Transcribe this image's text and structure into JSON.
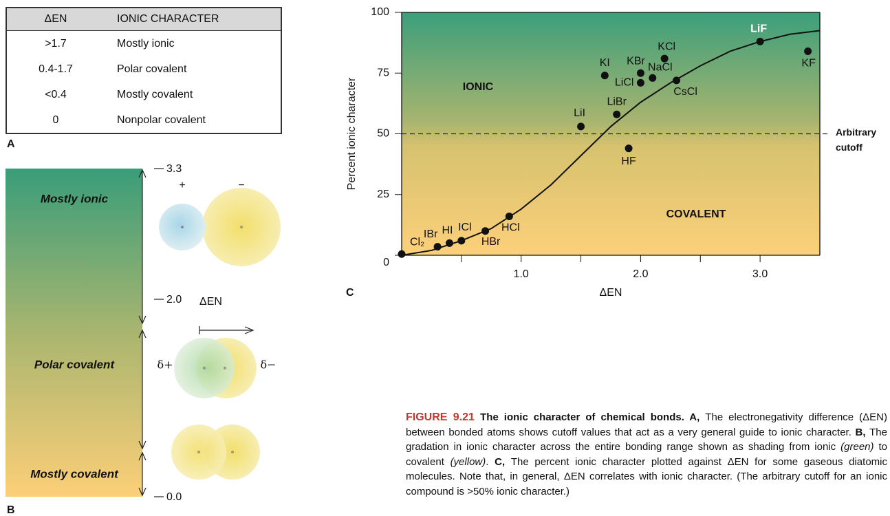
{
  "table": {
    "label": "A",
    "header": [
      "ΔEN",
      "IONIC CHARACTER"
    ],
    "rows": [
      [
        ">1.7",
        "Mostly ionic"
      ],
      [
        "0.4-1.7",
        "Polar covalent"
      ],
      [
        "<0.4",
        "Mostly covalent"
      ],
      [
        "0",
        "Nonpolar covalent"
      ]
    ]
  },
  "panel_b": {
    "label": "B",
    "regions": [
      "Mostly ionic",
      "Polar covalent",
      "Mostly covalent"
    ],
    "scale": [
      "3.3",
      "2.0",
      "0.0"
    ],
    "axis_label": "ΔEN",
    "ion_charges": [
      "+",
      "−"
    ],
    "partial_charges": [
      "δ+",
      "δ−"
    ]
  },
  "chart_data": {
    "type": "scatter",
    "panel_label": "C",
    "x_label": "ΔEN",
    "y_label": "Percent ionic character",
    "xlim": [
      0,
      3.5
    ],
    "ylim": [
      0,
      100
    ],
    "xticks": [
      {
        "value": 1,
        "label": "1.0"
      },
      {
        "value": 2,
        "label": "2.0"
      },
      {
        "value": 3,
        "label": "3.0"
      }
    ],
    "xminorticks": [
      0.5,
      1.5,
      2.5
    ],
    "yticks": [
      0,
      25,
      50,
      75,
      100
    ],
    "color": "#111111",
    "labels": [
      "Cl₂",
      "IBr",
      "HI",
      "ICl",
      "HBr",
      "HCl",
      "LiI",
      "KI",
      "LiBr",
      "HF",
      "KBr",
      "LiCl",
      "NaCl",
      "KCl",
      "CsCl",
      "LiF",
      "KF"
    ],
    "x": [
      0,
      0.3,
      0.4,
      0.5,
      0.7,
      0.9,
      1.5,
      1.7,
      1.8,
      1.9,
      2.0,
      2.0,
      2.1,
      2.2,
      2.3,
      3.0,
      3.4
    ],
    "values": [
      0.5,
      3.5,
      5,
      6,
      10,
      16,
      53,
      74,
      58,
      44,
      75,
      71,
      73,
      81,
      72,
      88,
      84
    ],
    "highlight_index": 15,
    "curve": {
      "x": [
        0,
        0.25,
        0.5,
        0.75,
        1.0,
        1.25,
        1.5,
        1.75,
        2.0,
        2.25,
        2.5,
        2.75,
        3.0,
        3.25,
        3.5
      ],
      "y": [
        0,
        2,
        6,
        11,
        19,
        29,
        41,
        53,
        63,
        71,
        78,
        84,
        88,
        91,
        92.5
      ]
    },
    "cutoff": {
      "value": 50,
      "label": [
        "Arbitrary",
        "cutoff"
      ]
    },
    "regions": {
      "upper": "IONIC",
      "lower": "COVALENT"
    }
  },
  "caption": {
    "segments": [
      {
        "text": "FIGURE 9.21 ",
        "style": "figure"
      },
      {
        "text": "The ionic character of chemical bonds. A, ",
        "style": "bold"
      },
      {
        "text": "The electronegativity difference (ΔEN) between bonded atoms shows cutoff values that act as a very general guide to ionic character. ",
        "style": "plain"
      },
      {
        "text": "B, ",
        "style": "bold"
      },
      {
        "text": "The gradation in ionic character across the entire bonding range shown as shading from ionic ",
        "style": "plain"
      },
      {
        "text": "(green)",
        "style": "italic"
      },
      {
        "text": " to covalent ",
        "style": "plain"
      },
      {
        "text": "(yellow)",
        "style": "italic"
      },
      {
        "text": ". ",
        "style": "plain"
      },
      {
        "text": "C, ",
        "style": "bold"
      },
      {
        "text": "The percent ionic character plotted against ΔEN for some gaseous diatomic molecules. Note that, in general, ΔEN correlates with ionic character. (The arbitrary cutoff for an ionic compound is >50% ionic character.)",
        "style": "plain"
      }
    ]
  }
}
